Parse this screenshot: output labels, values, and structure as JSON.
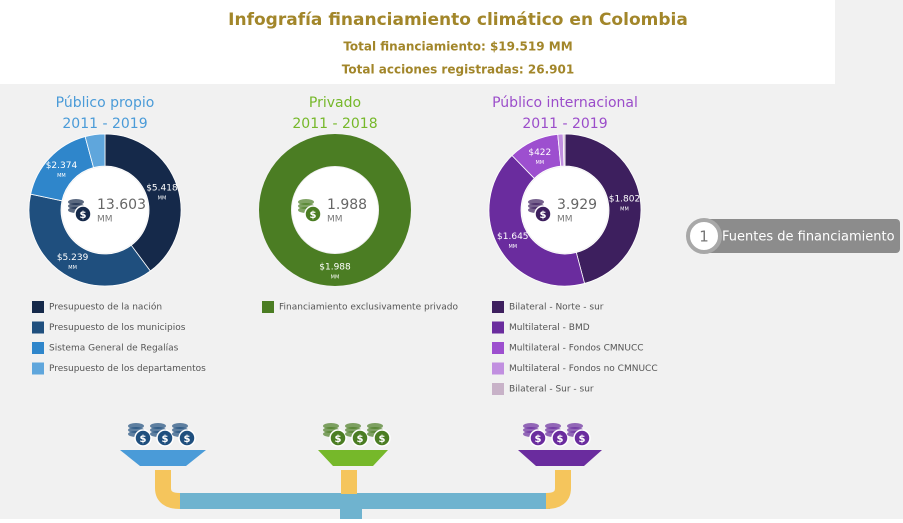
{
  "header": {
    "title": "Infografía financiamiento climático en Colombia",
    "total_funding": "Total financiamiento: $19.519 MM",
    "total_actions": "Total acciones registradas: 26.901"
  },
  "badge": {
    "number": "1",
    "label": "Fuentes de financiamiento"
  },
  "chart_data": [
    {
      "type": "donut",
      "title": "Público propio",
      "subtitle": "2011 - 2019",
      "title_color": "#4a9bd8",
      "total": "13.603",
      "unit": "MM",
      "categories": [
        "Presupuesto de la nación",
        "Presupuesto de los municipios",
        "Sistema General de Regalías",
        "Presupuesto de los departamentos"
      ],
      "values": [
        5418,
        5239,
        2374,
        572
      ],
      "value_labels": [
        "$5.418",
        "$5.239",
        "$2.374",
        null
      ],
      "colors": [
        "#15294a",
        "#1f4f7e",
        "#2f86cb",
        "#5fa6dc"
      ]
    },
    {
      "type": "donut",
      "title": "Privado",
      "subtitle": "2011 - 2018",
      "title_color": "#76b82a",
      "total": "1.988",
      "unit": "MM",
      "categories": [
        "Financiamiento exclusivamente privado"
      ],
      "values": [
        1988
      ],
      "value_labels": [
        "$1.988"
      ],
      "colors": [
        "#4b7d23"
      ]
    },
    {
      "type": "donut",
      "title": "Público internacional",
      "subtitle": "2011 - 2019",
      "title_color": "#9b4dca",
      "total": "3.929",
      "unit": "MM",
      "categories": [
        "Bilateral - Norte - sur",
        "Multilateral - BMD",
        "Multilateral - Fondos CMNUCC",
        "Multilateral - Fondos no CMNUCC",
        "Bilateral - Sur - sur"
      ],
      "values": [
        1802,
        1645,
        422,
        45,
        15
      ],
      "value_labels": [
        "$1.802",
        "$1.645",
        "$422",
        null,
        null
      ],
      "colors": [
        "#3d1f5e",
        "#6a2c9e",
        "#9d4fcf",
        "#c18fe0",
        "#c8b2c8"
      ]
    }
  ]
}
